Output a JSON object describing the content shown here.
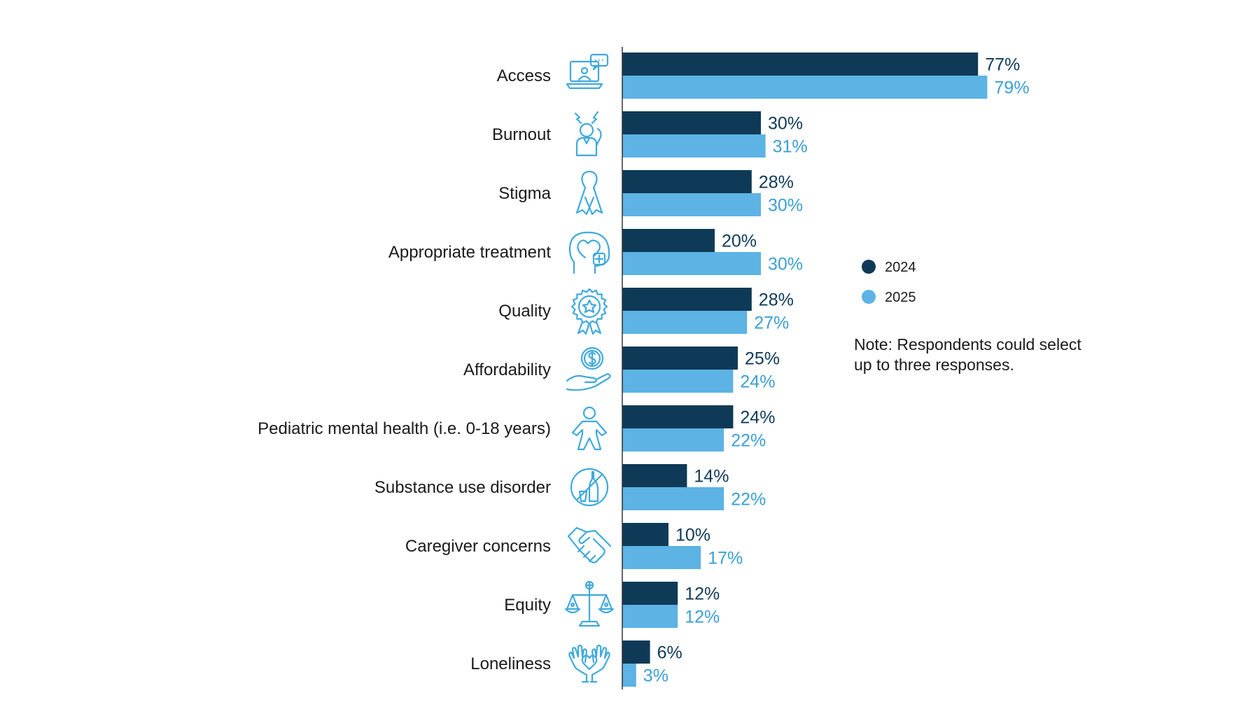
{
  "colors": {
    "series_2024": "#0f3a57",
    "series_2025": "#5cb3e4",
    "label_2025": "#3b9fd3",
    "icon": "#3fa9dc",
    "axis": "#333333"
  },
  "legend": [
    {
      "label": "2024",
      "color": "#0f3a57"
    },
    {
      "label": "2025",
      "color": "#5cb3e4"
    }
  ],
  "note": {
    "line1": "Note: Respondents could select",
    "line2": "up to three responses."
  },
  "chart_data": {
    "type": "bar",
    "orientation": "horizontal",
    "categories": [
      "Access",
      "Burnout",
      "Stigma",
      "Appropriate treatment",
      "Quality",
      "Affordability",
      "Pediatric mental health (i.e. 0-18 years)",
      "Substance use disorder",
      "Caregiver concerns",
      "Equity",
      "Loneliness"
    ],
    "icons": [
      "telehealth-computer-icon",
      "stressed-person-icon",
      "awareness-ribbon-icon",
      "head-heart-plus-icon",
      "quality-award-badge-icon",
      "hand-coin-dollar-icon",
      "child-figure-icon",
      "no-alcohol-icon",
      "handshake-icon",
      "scales-of-justice-icon",
      "hands-heart-icon"
    ],
    "series": [
      {
        "name": "2024",
        "values": [
          77,
          30,
          28,
          20,
          28,
          25,
          24,
          14,
          10,
          12,
          6
        ]
      },
      {
        "name": "2025",
        "values": [
          79,
          31,
          30,
          30,
          27,
          24,
          22,
          22,
          17,
          12,
          3
        ]
      }
    ],
    "value_labels": {
      "2024": [
        "77%",
        "30%",
        "28%",
        "20%",
        "28%",
        "25%",
        "24%",
        "14%",
        "10%",
        "12%",
        "6%"
      ],
      "2025": [
        "79%",
        "31%",
        "30%",
        "30%",
        "27%",
        "24%",
        "22%",
        "22%",
        "17%",
        "12%",
        "3%"
      ]
    },
    "unit": "%",
    "xlim": [
      0,
      100
    ],
    "grid": false,
    "legend_position": "right"
  }
}
